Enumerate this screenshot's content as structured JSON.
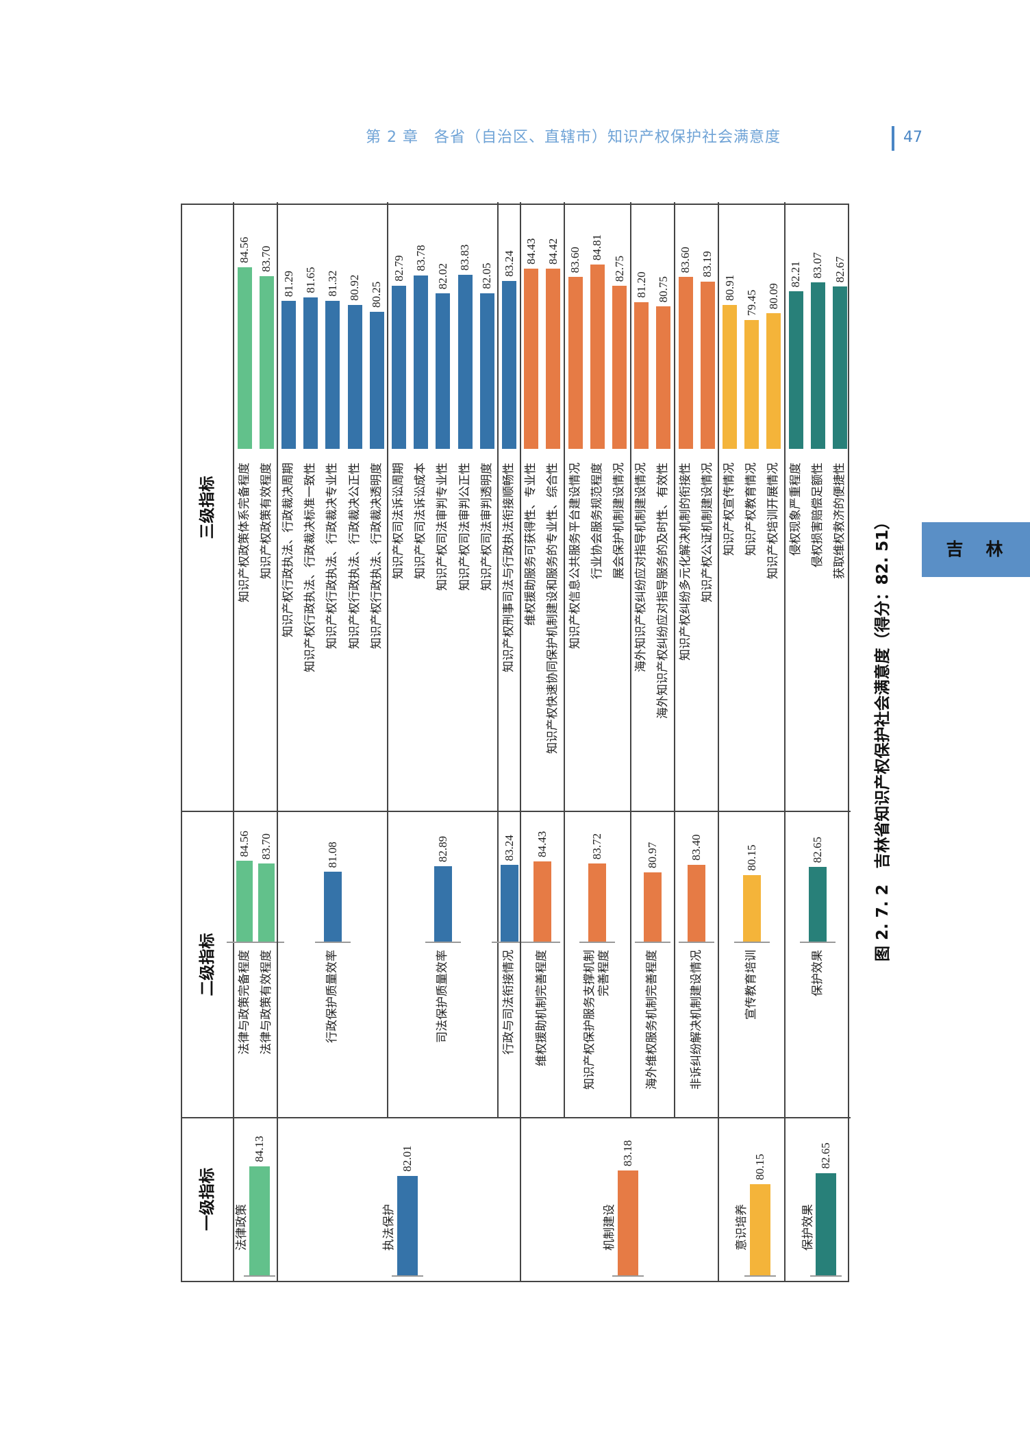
{
  "page_header": {
    "chapter": "第 2 章　各省（自治区、直辖市）知识产权保护社会满意度",
    "page_number": "47"
  },
  "side_tab": {
    "label": "吉　林",
    "color": "#5a8fc6"
  },
  "figure_caption": "图 2. 7. 2　吉林省知识产权保护社会满意度（得分：82. 51）",
  "chart_data": {
    "type": "bar",
    "orientation": "rotated page, horizontal bars grouped in a three-level table",
    "column_headers": [
      "一级指标",
      "二级指标",
      "三级指标"
    ],
    "level1": [
      {
        "name": "法律政策",
        "value": 84.13,
        "color": "#62c18b",
        "children": [
          {
            "name": "法律与政策完备程度",
            "value": 84.56,
            "children": [
              {
                "name": "知识产权政策体系完备程度",
                "value": 84.56
              }
            ]
          },
          {
            "name": "法律与政策有效程度",
            "value": 83.7,
            "children": [
              {
                "name": "知识产权政策有效程度",
                "value": 83.7
              }
            ]
          }
        ]
      },
      {
        "name": "执法保护",
        "value": 82.01,
        "color": "#3573a9",
        "children": [
          {
            "name": "行政保护质量效率",
            "value": 81.08,
            "children": [
              {
                "name": "知识产权行政执法、行政裁决周期",
                "value": 81.29
              },
              {
                "name": "知识产权行政执法、行政裁决标准一致性",
                "value": 81.65
              },
              {
                "name": "知识产权行政执法、行政裁决专业性",
                "value": 81.32
              },
              {
                "name": "知识产权行政执法、行政裁决公正性",
                "value": 80.92
              },
              {
                "name": "知识产权行政执法、行政裁决透明度",
                "value": 80.25
              }
            ]
          },
          {
            "name": "司法保护质量效率",
            "value": 82.89,
            "children": [
              {
                "name": "知识产权司法诉讼周期",
                "value": 82.79
              },
              {
                "name": "知识产权司法诉讼成本",
                "value": 83.78
              },
              {
                "name": "知识产权司法审判专业性",
                "value": 82.02
              },
              {
                "name": "知识产权司法审判公正性",
                "value": 83.83
              },
              {
                "name": "知识产权司法审判透明度",
                "value": 82.05
              }
            ]
          },
          {
            "name": "行政与司法衔接情况",
            "value": 83.24,
            "children": [
              {
                "name": "知识产权刑事司法与行政执法衔接顺畅性",
                "value": 83.24
              }
            ]
          }
        ]
      },
      {
        "name": "机制建设",
        "value": 83.18,
        "color": "#e67b45",
        "children": [
          {
            "name": "维权援助机制完善程度",
            "value": 84.43,
            "children": [
              {
                "name": "维权援助服务可获得性、专业性",
                "value": 84.43
              },
              {
                "name": "知识产权快速协同保护机制建设和服务的专业性、综合性",
                "value": 84.42
              }
            ]
          },
          {
            "name": "知识产权保护服务支撑机制\n完善程度",
            "value": 83.72,
            "children": [
              {
                "name": "知识产权信息公共服务平台建设情况",
                "value": 83.6
              },
              {
                "name": "行业协会服务规范程度",
                "value": 84.81
              },
              {
                "name": "展会保护机制建设情况",
                "value": 82.75
              }
            ]
          },
          {
            "name": "海外维权服务机制完善程度",
            "value": 80.97,
            "children": [
              {
                "name": "海外知识产权纠纷应对指导机制建设情况",
                "value": 81.2
              },
              {
                "name": "海外知识产权纠纷应对指导服务的及时性、有效性",
                "value": 80.75
              }
            ]
          },
          {
            "name": "非诉纠纷解决机制建设情况",
            "value": 83.4,
            "children": [
              {
                "name": "知识产权纠纷多元化解决机制的衔接性",
                "value": 83.6
              },
              {
                "name": "知识产权公证机制建设情况",
                "value": 83.19
              }
            ]
          }
        ]
      },
      {
        "name": "意识培养",
        "value": 80.15,
        "color": "#f4b43a",
        "children": [
          {
            "name": "宣传教育培训",
            "value": 80.15,
            "children": [
              {
                "name": "知识产权宣传情况",
                "value": 80.91
              },
              {
                "name": "知识产权教育情况",
                "value": 79.45
              },
              {
                "name": "知识产权培训开展情况",
                "value": 80.09
              }
            ]
          }
        ]
      },
      {
        "name": "保护效果",
        "value": 82.65,
        "color": "#288079",
        "children": [
          {
            "name": "保护效果",
            "value": 82.65,
            "children": [
              {
                "name": "侵权现象严重程度",
                "value": 82.21
              },
              {
                "name": "侵权损害赔偿足额性",
                "value": 83.07
              },
              {
                "name": "获取维权救济的便捷性",
                "value": 82.67
              }
            ]
          }
        ]
      }
    ]
  }
}
